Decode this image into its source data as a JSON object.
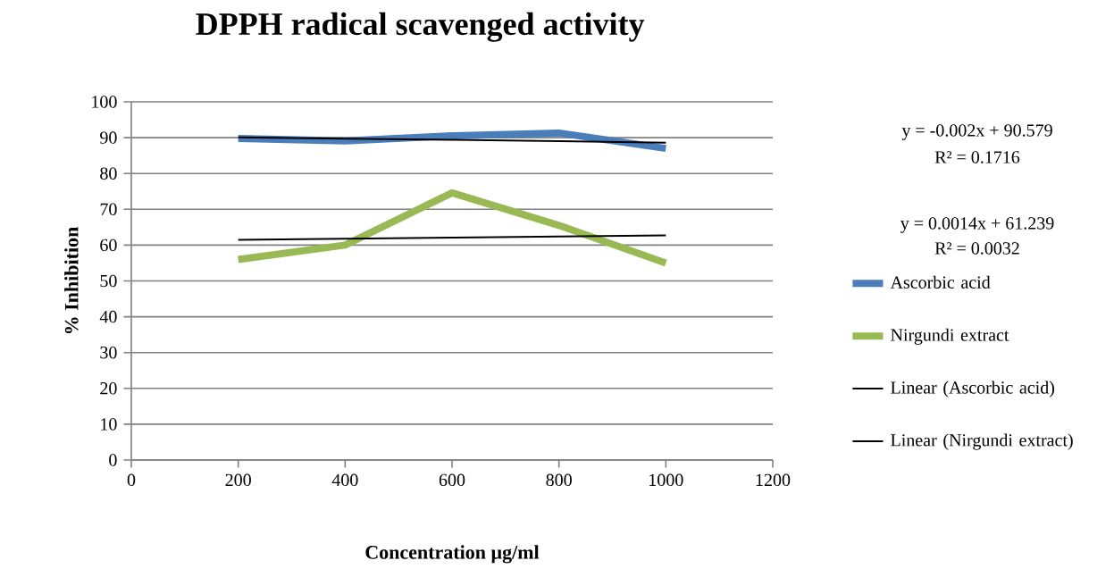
{
  "chart_data": {
    "type": "line",
    "title": "DPPH radical scavenged activity",
    "xlabel": "Concentration µg/ml",
    "ylabel": "% Inhibition",
    "x": [
      200,
      400,
      600,
      800,
      1000
    ],
    "series": [
      {
        "name": "Ascorbic acid",
        "color": "#4a7ebb",
        "values": [
          89.8,
          89.1,
          90.5,
          91.3,
          87.0
        ]
      },
      {
        "name": "Nirgundi extract",
        "color": "#98b954",
        "values": [
          56.0,
          60.0,
          74.6,
          65.5,
          55.0
        ]
      },
      {
        "name": "Linear (Ascorbic acid)",
        "color": "#000000",
        "values": [
          90.1,
          89.7,
          89.4,
          89.0,
          88.6
        ]
      },
      {
        "name": "Linear (Nirgundi extract)",
        "color": "#000000",
        "values": [
          61.5,
          61.8,
          62.1,
          62.4,
          62.7
        ]
      }
    ],
    "xlim": [
      0,
      1200
    ],
    "xticks": [
      0,
      200,
      400,
      600,
      800,
      1000,
      1200
    ],
    "ylim": [
      0,
      100
    ],
    "yticks": [
      0,
      10,
      20,
      30,
      40,
      50,
      60,
      70,
      80,
      90,
      100
    ],
    "grid": "y",
    "legend": "right",
    "marker": "none",
    "line_style": "solid",
    "annotations": [
      "y = -0.002x + 90.579",
      "R² = 0.1716",
      "y = 0.0014x + 61.239",
      "R² = 0.0032"
    ]
  }
}
